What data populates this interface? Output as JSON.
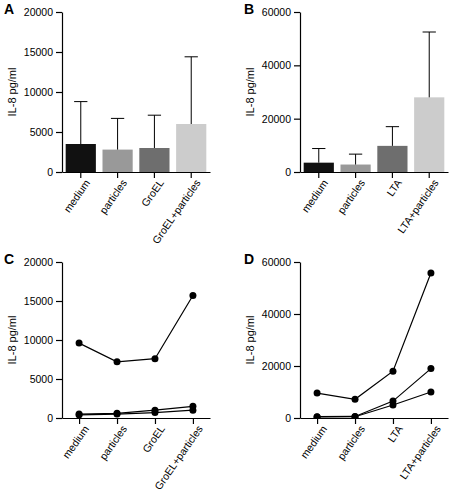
{
  "chart_data": [
    {
      "type": "bar",
      "title": "A",
      "ylabel": "IL-8 pg/ml",
      "categories": [
        "medium",
        "particles",
        "GroEL",
        "GroEL+particles"
      ],
      "values": [
        3500,
        2800,
        3000,
        6000
      ],
      "errors": [
        5300,
        3900,
        4100,
        8400
      ],
      "colors": [
        "#111111",
        "#999999",
        "#6e6e6e",
        "#cccccc"
      ],
      "ylim": [
        0,
        20000
      ],
      "yticks": [
        0,
        5000,
        10000,
        15000,
        20000
      ]
    },
    {
      "type": "bar",
      "title": "B",
      "ylabel": "IL-8 pg/ml",
      "categories": [
        "medium",
        "particles",
        "LTA",
        "LTA+particles"
      ],
      "values": [
        3500,
        2800,
        9800,
        28000
      ],
      "errors": [
        5300,
        3900,
        7200,
        24500
      ],
      "colors": [
        "#111111",
        "#999999",
        "#6e6e6e",
        "#cccccc"
      ],
      "ylim": [
        0,
        60000
      ],
      "yticks": [
        0,
        20000,
        40000,
        60000
      ]
    },
    {
      "type": "line",
      "title": "C",
      "ylabel": "IL-8 pg/ml",
      "categories": [
        "medium",
        "particles",
        "GroEL",
        "GroEL+particles"
      ],
      "series": [
        {
          "color": "#000000",
          "marker": "circle",
          "values": [
            9600,
            7200,
            7600,
            15700
          ]
        },
        {
          "color": "#000000",
          "marker": "circle",
          "values": [
            500,
            600,
            1000,
            1500
          ]
        },
        {
          "color": "#000000",
          "marker": "circle",
          "values": [
            400,
            500,
            700,
            1000
          ]
        }
      ],
      "ylim": [
        0,
        20000
      ],
      "yticks": [
        0,
        5000,
        10000,
        15000,
        20000
      ]
    },
    {
      "type": "line",
      "title": "D",
      "ylabel": "IL-8 pg/ml",
      "categories": [
        "medium",
        "particles",
        "LTA",
        "LTA+particles"
      ],
      "series": [
        {
          "color": "#000000",
          "marker": "circle",
          "values": [
            9600,
            7200,
            18000,
            55800
          ]
        },
        {
          "color": "#000000",
          "marker": "circle",
          "values": [
            500,
            600,
            6500,
            19000
          ]
        },
        {
          "color": "#000000",
          "marker": "circle",
          "values": [
            400,
            500,
            5000,
            10000
          ]
        }
      ],
      "ylim": [
        0,
        60000
      ],
      "yticks": [
        0,
        20000,
        40000,
        60000
      ]
    }
  ]
}
